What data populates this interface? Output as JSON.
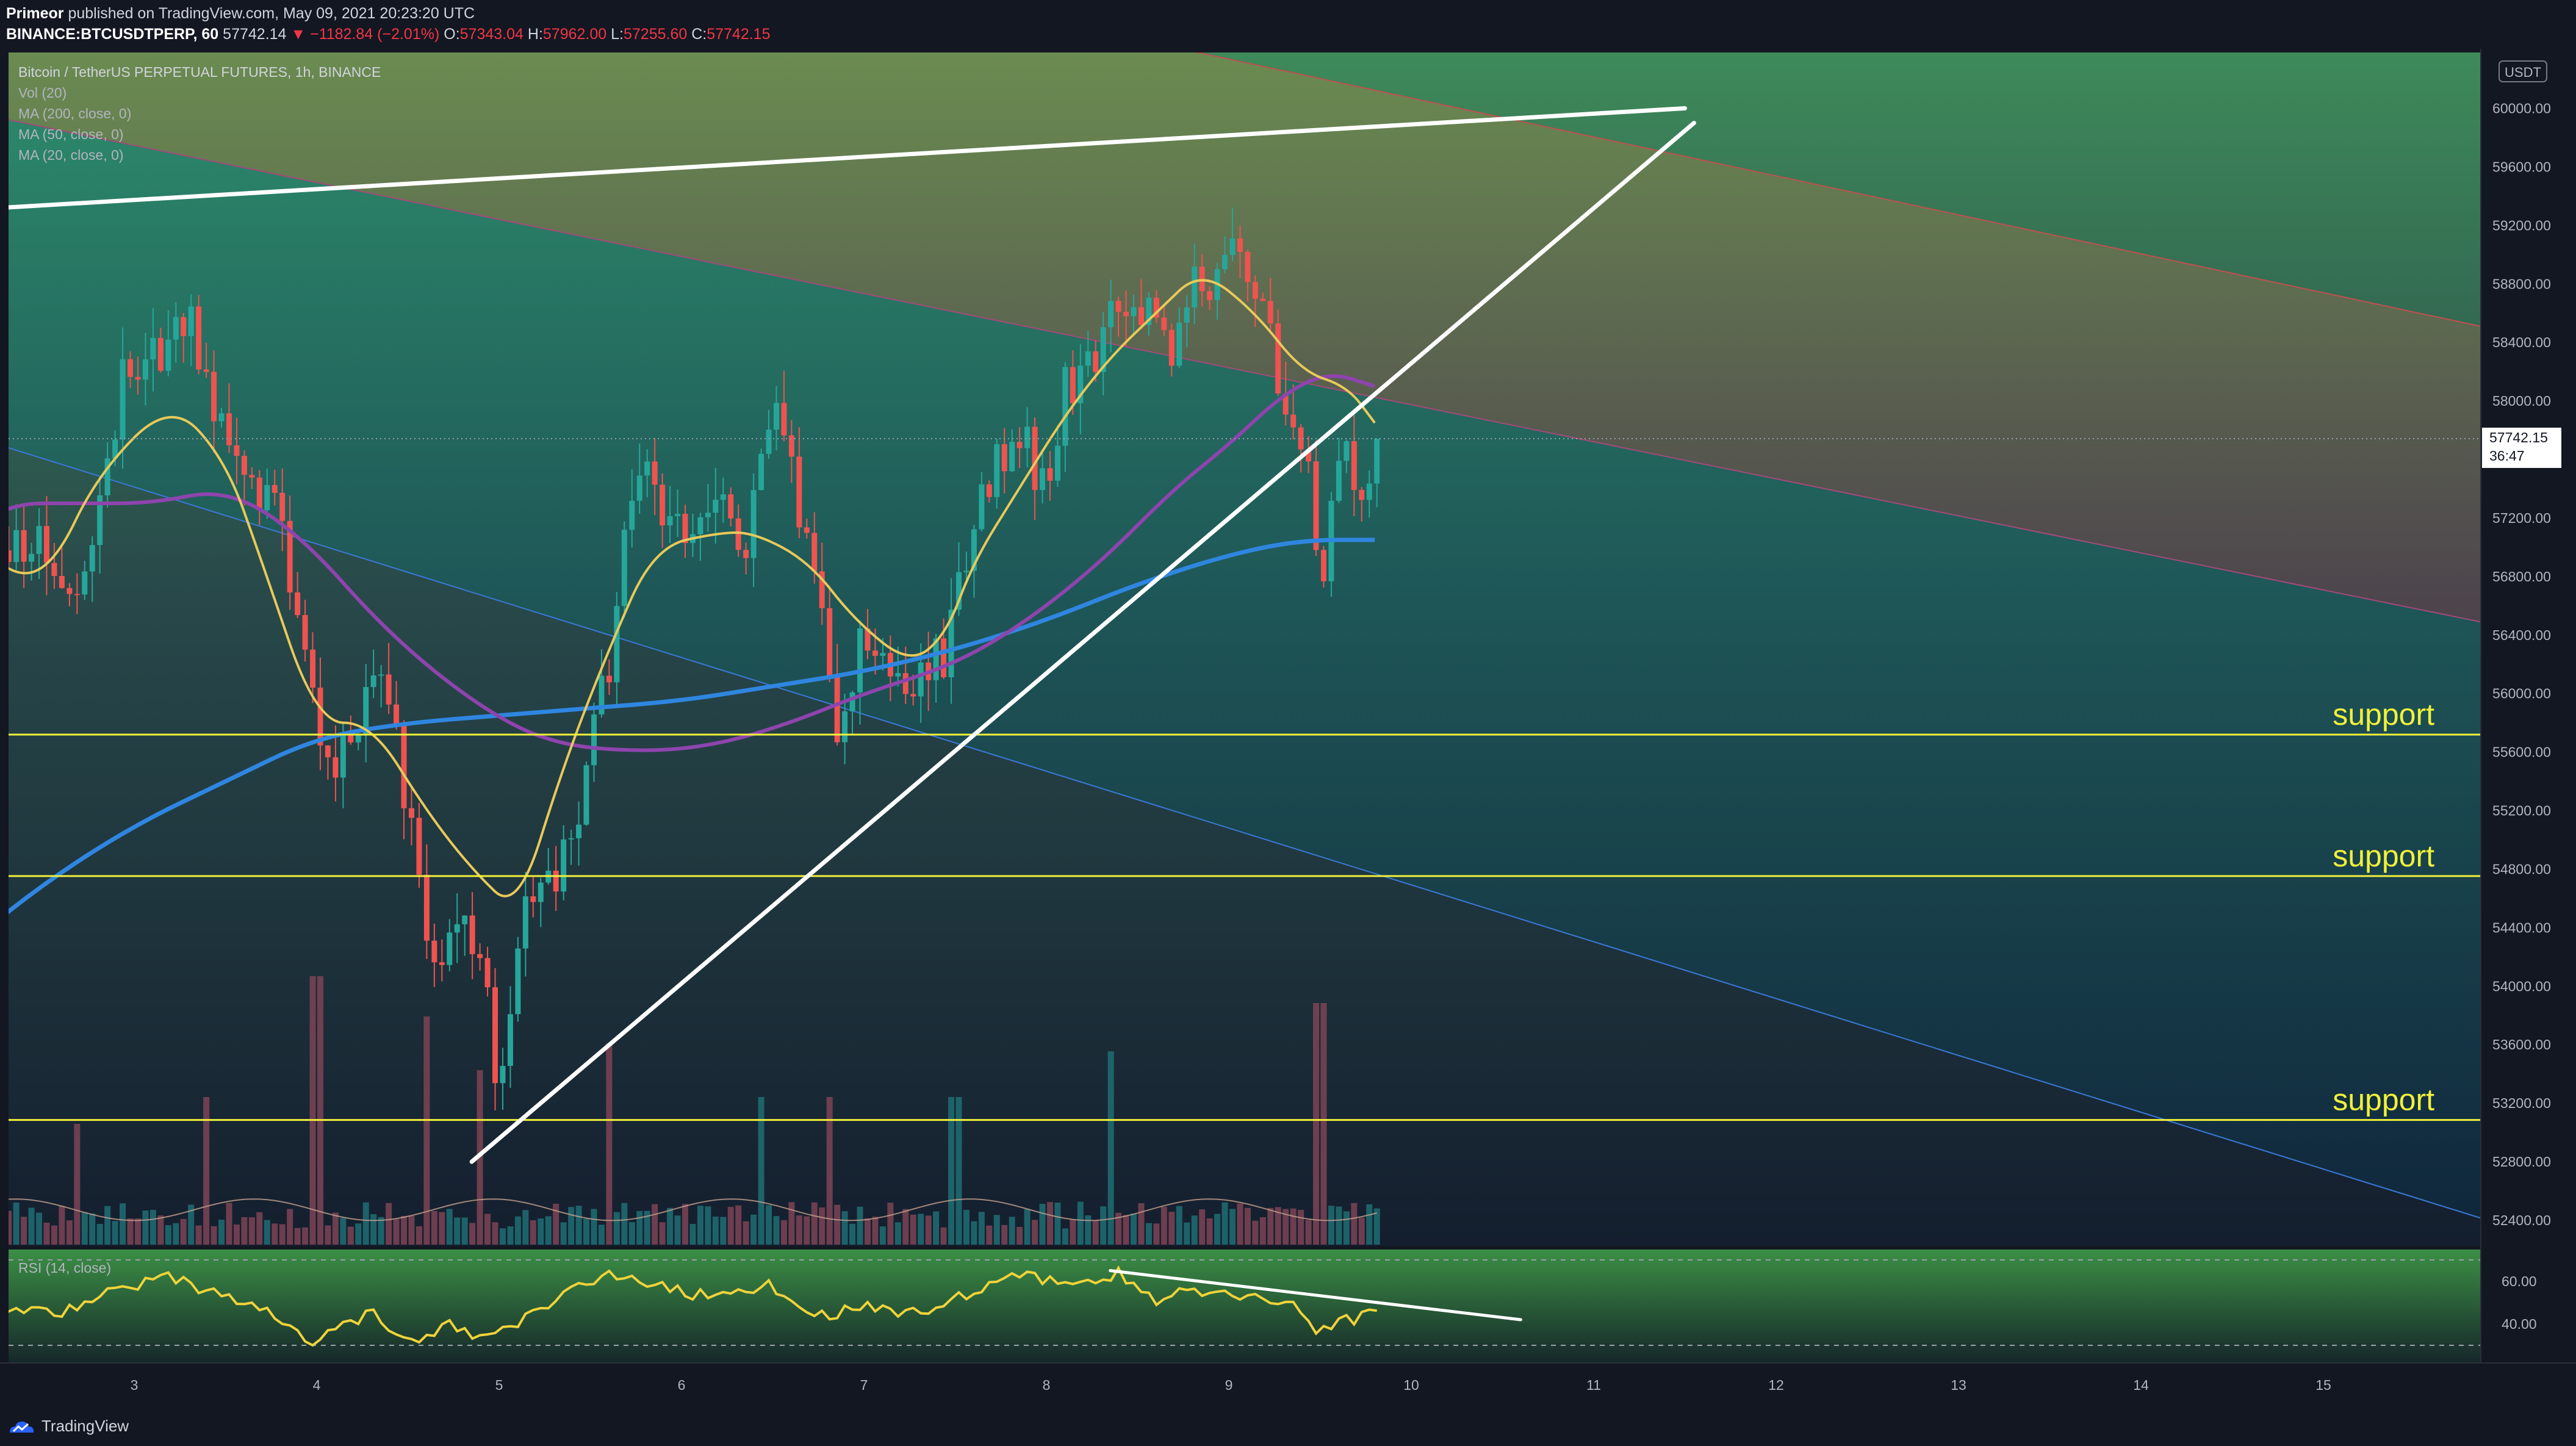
{
  "header": {
    "author": "Primeor",
    "published_text": "published on TradingView.com, May 09, 2021 20:23:20 UTC",
    "symbol": "BINANCE:BTCUSDTPERP, 60",
    "last_price": "57742.14",
    "change": "▼ −1182.84 (−2.01%)",
    "o_label": "O:",
    "o_value": "57343.04",
    "h_label": "H:",
    "h_value": "57962.00",
    "l_label": "L:",
    "l_value": "57255.60",
    "c_label": "C:",
    "c_value": "57742.15"
  },
  "legend": {
    "title": "Bitcoin / TetherUS PERPETUAL FUTURES, 1h, BINANCE",
    "items": [
      "Vol (20)",
      "MA (200, close, 0)",
      "MA (50, close, 0)",
      "MA (20, close, 0)"
    ]
  },
  "currency_badge": "USDT",
  "price_label": {
    "value": "57742.15",
    "countdown": "36:47"
  },
  "rsi_label": "RSI (14, close)",
  "footer": {
    "brand": "TradingView"
  },
  "colors": {
    "background": "#131722",
    "up": "#26a69a",
    "down": "#ef5350",
    "ma20": "#e8c95a",
    "ma50": "#8e44ad",
    "ma200": "#2f86e0",
    "support": "#f1f13a",
    "rsi": "#f0d33a",
    "trendline": "#ffffff"
  },
  "chart_data": {
    "type": "candlestick",
    "title": "Bitcoin / TetherUS PERPETUAL FUTURES, 1h, BINANCE",
    "xlabel": "",
    "ylabel": "",
    "x_ticks": [
      "3",
      "4",
      "5",
      "6",
      "7",
      "8",
      "9",
      "10",
      "11",
      "12",
      "13",
      "14",
      "15"
    ],
    "y_ticks": [
      52400,
      52800,
      53200,
      53600,
      54000,
      54400,
      54800,
      55200,
      55600,
      56000,
      56400,
      56800,
      57200,
      57600,
      58000,
      58400,
      58800,
      59200,
      59600,
      60000
    ],
    "ylim": [
      52200,
      60400
    ],
    "close_path": [
      [
        2.2,
        56900
      ],
      [
        2.35,
        57100
      ],
      [
        2.5,
        56950
      ],
      [
        2.65,
        56600
      ],
      [
        2.8,
        57300
      ],
      [
        2.95,
        58200
      ],
      [
        3.1,
        58300
      ],
      [
        3.3,
        58600
      ],
      [
        3.45,
        57900
      ],
      [
        3.6,
        57600
      ],
      [
        3.8,
        57200
      ],
      [
        3.95,
        56200
      ],
      [
        4.05,
        55400
      ],
      [
        4.2,
        55800
      ],
      [
        4.35,
        56300
      ],
      [
        4.5,
        55200
      ],
      [
        4.62,
        54100
      ],
      [
        4.75,
        54500
      ],
      [
        4.9,
        54200
      ],
      [
        5.0,
        53300
      ],
      [
        5.15,
        54800
      ],
      [
        5.3,
        54600
      ],
      [
        5.45,
        55300
      ],
      [
        5.6,
        56200
      ],
      [
        5.75,
        57500
      ],
      [
        5.9,
        57300
      ],
      [
        6.05,
        57100
      ],
      [
        6.2,
        57300
      ],
      [
        6.35,
        57000
      ],
      [
        6.5,
        57900
      ],
      [
        6.6,
        57500
      ],
      [
        6.75,
        56700
      ],
      [
        6.85,
        55800
      ],
      [
        7.0,
        56400
      ],
      [
        7.15,
        56000
      ],
      [
        7.3,
        56100
      ],
      [
        7.45,
        56300
      ],
      [
        7.6,
        57200
      ],
      [
        7.75,
        57600
      ],
      [
        7.85,
        57800
      ],
      [
        8.0,
        57300
      ],
      [
        8.1,
        58100
      ],
      [
        8.25,
        58300
      ],
      [
        8.4,
        58800
      ],
      [
        8.55,
        58600
      ],
      [
        8.7,
        58300
      ],
      [
        8.8,
        58900
      ],
      [
        8.95,
        58800
      ],
      [
        9.05,
        59100
      ],
      [
        9.2,
        58500
      ],
      [
        9.3,
        58000
      ],
      [
        9.45,
        57400
      ],
      [
        9.5,
        56500
      ],
      [
        9.55,
        57300
      ],
      [
        9.65,
        57600
      ],
      [
        9.75,
        57300
      ],
      [
        9.8,
        57742
      ]
    ],
    "volume_spikes": [
      {
        "x": 2.7,
        "v": 0.45
      },
      {
        "x": 3.4,
        "v": 0.55
      },
      {
        "x": 4.0,
        "v": 1.0
      },
      {
        "x": 4.6,
        "v": 0.85
      },
      {
        "x": 4.9,
        "v": 0.65
      },
      {
        "x": 5.6,
        "v": 0.75
      },
      {
        "x": 6.45,
        "v": 0.55
      },
      {
        "x": 6.8,
        "v": 0.55
      },
      {
        "x": 7.5,
        "v": 0.55
      },
      {
        "x": 8.35,
        "v": 0.72
      },
      {
        "x": 9.5,
        "v": 0.9
      }
    ],
    "ma20_path": [
      [
        2.0,
        57300
      ],
      [
        2.3,
        56800
      ],
      [
        2.55,
        56850
      ],
      [
        2.8,
        57500
      ],
      [
        3.2,
        58000
      ],
      [
        3.5,
        57600
      ],
      [
        3.7,
        56900
      ],
      [
        4.0,
        55800
      ],
      [
        4.3,
        55800
      ],
      [
        4.6,
        55200
      ],
      [
        4.85,
        54800
      ],
      [
        5.1,
        54500
      ],
      [
        5.35,
        55500
      ],
      [
        5.6,
        56300
      ],
      [
        5.85,
        57000
      ],
      [
        6.2,
        57100
      ],
      [
        6.4,
        57100
      ],
      [
        6.7,
        56900
      ],
      [
        6.95,
        56500
      ],
      [
        7.25,
        56200
      ],
      [
        7.45,
        56400
      ],
      [
        7.6,
        56900
      ],
      [
        7.85,
        57400
      ],
      [
        8.1,
        57900
      ],
      [
        8.35,
        58300
      ],
      [
        8.6,
        58600
      ],
      [
        8.85,
        58900
      ],
      [
        9.15,
        58600
      ],
      [
        9.4,
        58200
      ],
      [
        9.65,
        58100
      ],
      [
        9.8,
        57850
      ]
    ],
    "ma50_path": [
      [
        2.0,
        57000
      ],
      [
        2.3,
        57300
      ],
      [
        2.7,
        57300
      ],
      [
        3.1,
        57300
      ],
      [
        3.5,
        57400
      ],
      [
        3.9,
        57100
      ],
      [
        4.4,
        56400
      ],
      [
        4.9,
        55900
      ],
      [
        5.3,
        55650
      ],
      [
        5.8,
        55600
      ],
      [
        6.2,
        55650
      ],
      [
        6.6,
        55800
      ],
      [
        7.0,
        56000
      ],
      [
        7.5,
        56200
      ],
      [
        7.9,
        56500
      ],
      [
        8.3,
        56900
      ],
      [
        8.7,
        57400
      ],
      [
        9.0,
        57700
      ],
      [
        9.3,
        58050
      ],
      [
        9.55,
        58200
      ],
      [
        9.8,
        58100
      ]
    ],
    "ma200_path": [
      [
        2.0,
        54200
      ],
      [
        2.5,
        54700
      ],
      [
        3.0,
        55100
      ],
      [
        3.5,
        55400
      ],
      [
        4.0,
        55700
      ],
      [
        4.5,
        55800
      ],
      [
        5.0,
        55850
      ],
      [
        5.5,
        55900
      ],
      [
        6.0,
        55950
      ],
      [
        6.5,
        56050
      ],
      [
        7.0,
        56150
      ],
      [
        7.5,
        56300
      ],
      [
        8.0,
        56500
      ],
      [
        8.5,
        56750
      ],
      [
        9.0,
        56950
      ],
      [
        9.4,
        57050
      ],
      [
        9.8,
        57050
      ]
    ],
    "channel_red_upper": [
      [
        2.0,
        62200
      ],
      [
        15.9,
        58500
      ]
    ],
    "channel_red_lower": [
      [
        2.0,
        60000
      ],
      [
        15.9,
        56480
      ]
    ],
    "channel_blue": [
      [
        2.0,
        57800
      ],
      [
        15.9,
        52400
      ]
    ],
    "trendline_top": [
      [
        2.0,
        59300
      ],
      [
        11.5,
        60000
      ]
    ],
    "trendline_rising": [
      [
        4.85,
        52800
      ],
      [
        11.55,
        59900
      ]
    ],
    "support_lines": [
      {
        "value": 55719.18,
        "label": "support",
        "badge": "55719.18"
      },
      {
        "value": 54752.58,
        "label": "support",
        "badge": "54752.58"
      },
      {
        "value": 53085.48,
        "label": "support",
        "badge": "53085.48"
      }
    ],
    "rsi": {
      "label": "RSI (14, close)",
      "levels": [
        70,
        30
      ],
      "axis_labels": [
        "60.00",
        "40.00"
      ],
      "path": [
        [
          2.0,
          42
        ],
        [
          2.3,
          48
        ],
        [
          2.6,
          45
        ],
        [
          2.9,
          56
        ],
        [
          3.2,
          63
        ],
        [
          3.5,
          52
        ],
        [
          3.75,
          45
        ],
        [
          3.95,
          30
        ],
        [
          4.3,
          45
        ],
        [
          4.55,
          30
        ],
        [
          4.75,
          40
        ],
        [
          4.95,
          32
        ],
        [
          5.3,
          52
        ],
        [
          5.6,
          63
        ],
        [
          5.9,
          57
        ],
        [
          6.2,
          52
        ],
        [
          6.5,
          58
        ],
        [
          6.75,
          44
        ],
        [
          7.0,
          48
        ],
        [
          7.3,
          45
        ],
        [
          7.6,
          56
        ],
        [
          7.85,
          63
        ],
        [
          8.15,
          58
        ],
        [
          8.4,
          64
        ],
        [
          8.6,
          50
        ],
        [
          8.8,
          56
        ],
        [
          9.1,
          54
        ],
        [
          9.35,
          48
        ],
        [
          9.5,
          36
        ],
        [
          9.65,
          42
        ],
        [
          9.8,
          45
        ]
      ],
      "divergence_line": [
        [
          8.35,
          65
        ],
        [
          10.6,
          42
        ]
      ]
    }
  }
}
